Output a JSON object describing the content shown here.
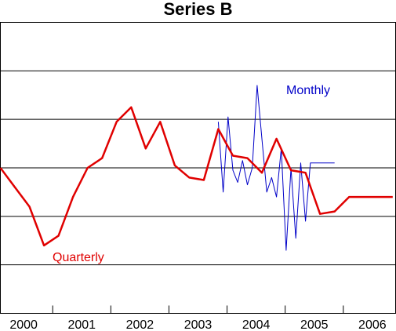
{
  "chart_data": {
    "type": "line",
    "title": "Series B",
    "xlabel": "",
    "ylabel": "",
    "x_range": [
      2000.0,
      2006.8
    ],
    "y_range": [
      0,
      6
    ],
    "y_gridlines": [
      1,
      2,
      3,
      4,
      5
    ],
    "x_tick_labels": [
      "2000",
      "2001",
      "2002",
      "2003",
      "2004",
      "2005",
      "2006"
    ],
    "x_tick_centers": [
      2000.4,
      2001.4,
      2002.4,
      2003.4,
      2004.4,
      2005.4,
      2006.4
    ],
    "x_tick_marks": [
      2000.9,
      2001.9,
      2002.9,
      2003.9,
      2004.9,
      2005.9
    ],
    "grid": true,
    "colors": {
      "quarterly": "#e00000",
      "monthly": "#0000c8"
    },
    "series": [
      {
        "name": "Quarterly",
        "x": [
          2000.0,
          2000.25,
          2000.5,
          2000.75,
          2001.0,
          2001.25,
          2001.5,
          2001.75,
          2002.0,
          2002.25,
          2002.5,
          2002.75,
          2003.0,
          2003.25,
          2003.5,
          2003.75,
          2004.0,
          2004.25,
          2004.5,
          2004.75,
          2005.0,
          2005.25,
          2005.5,
          2005.75,
          2006.0,
          2006.25,
          2006.5,
          2006.75
        ],
        "values": [
          3.0,
          2.6,
          2.2,
          1.4,
          1.6,
          2.4,
          3.0,
          3.2,
          3.95,
          4.25,
          3.4,
          3.95,
          3.05,
          2.8,
          2.75,
          3.8,
          3.25,
          3.2,
          2.9,
          3.6,
          2.95,
          2.9,
          2.05,
          2.1,
          2.4,
          2.4,
          2.4,
          2.4
        ]
      },
      {
        "name": "Monthly",
        "x": [
          2003.75,
          2003.833,
          2003.917,
          2004.0,
          2004.083,
          2004.167,
          2004.25,
          2004.333,
          2004.417,
          2004.5,
          2004.583,
          2004.667,
          2004.75,
          2004.833,
          2004.917,
          2005.0,
          2005.083,
          2005.167,
          2005.25,
          2005.333,
          2005.417,
          2005.5,
          2005.583,
          2005.667,
          2005.75
        ],
        "values": [
          3.95,
          2.5,
          4.05,
          2.95,
          2.7,
          3.15,
          2.65,
          3.0,
          4.7,
          3.6,
          2.5,
          2.8,
          2.4,
          3.4,
          1.3,
          3.0,
          1.55,
          3.1,
          1.9,
          3.1,
          3.1,
          3.1,
          3.1,
          3.1,
          3.1
        ],
        "label_text": "Monthly"
      }
    ]
  }
}
